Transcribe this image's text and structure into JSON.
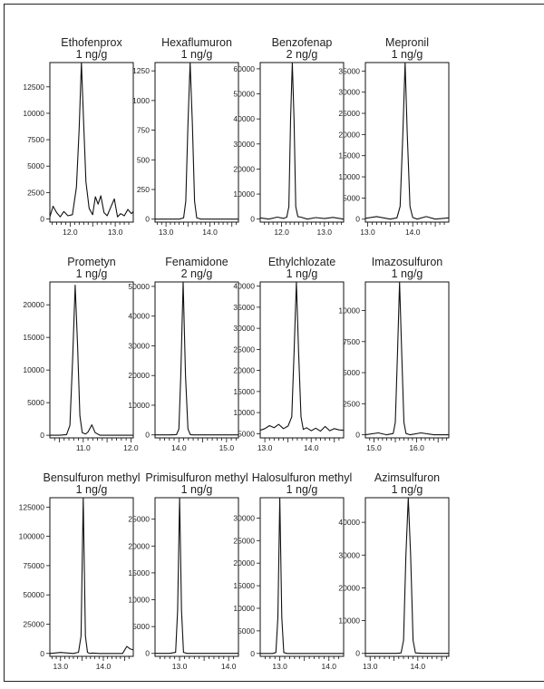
{
  "chart_data": [
    {
      "type": "line",
      "title": "Ethofenprox",
      "subtitle": "1 ng/g",
      "xlim": [
        11.55,
        13.4
      ],
      "ylim": [
        -300,
        14800
      ],
      "xticks": [
        12.0,
        12.5,
        13.0
      ],
      "xtick_labels": [
        "12.0",
        "",
        "13.0"
      ],
      "xminor": [
        11.6,
        11.7,
        11.8,
        11.9,
        12.1,
        12.2,
        12.3,
        12.4,
        12.6,
        12.7,
        12.8,
        12.9,
        13.1,
        13.2,
        13.3
      ],
      "yticks": [
        0,
        2500,
        5000,
        7500,
        10000,
        12500
      ],
      "ytick_labels": [
        "0",
        "2500",
        "5000",
        "7500",
        "10000",
        "12500"
      ],
      "series": [
        {
          "x": [
            11.55,
            11.62,
            11.7,
            11.78,
            11.86,
            11.95,
            12.05,
            12.14,
            12.2,
            12.25,
            12.3,
            12.35,
            12.42,
            12.5,
            12.56,
            12.62,
            12.68,
            12.75,
            12.82,
            12.9,
            12.98,
            13.05,
            13.12,
            13.2,
            13.28,
            13.36,
            13.4
          ],
          "y": [
            200,
            1200,
            600,
            200,
            700,
            300,
            400,
            3000,
            8500,
            14800,
            9000,
            3500,
            1000,
            400,
            2100,
            1400,
            2200,
            600,
            300,
            1100,
            1900,
            200,
            500,
            300,
            900,
            500,
            700
          ]
        }
      ]
    },
    {
      "type": "line",
      "title": "Hexaflumuron",
      "subtitle": "1 ng/g",
      "xlim": [
        12.75,
        14.65
      ],
      "ylim": [
        -25,
        1320
      ],
      "xticks": [
        13.0,
        13.5,
        14.0,
        14.5
      ],
      "xtick_labels": [
        "13.0",
        "",
        "14.0",
        ""
      ],
      "xminor": [
        12.8,
        12.9,
        13.1,
        13.2,
        13.3,
        13.4,
        13.6,
        13.7,
        13.8,
        13.9,
        14.1,
        14.2,
        14.3,
        14.4,
        14.6
      ],
      "yticks": [
        0,
        250,
        500,
        750,
        1000,
        1250
      ],
      "ytick_labels": [
        "0",
        "250",
        "500",
        "750",
        "1000",
        "1250"
      ],
      "series": [
        {
          "x": [
            12.75,
            13.0,
            13.3,
            13.4,
            13.45,
            13.5,
            13.55,
            13.6,
            13.65,
            13.7,
            13.8,
            14.0,
            14.3,
            14.65
          ],
          "y": [
            0,
            0,
            0,
            10,
            150,
            800,
            1320,
            800,
            150,
            10,
            0,
            0,
            0,
            0
          ]
        }
      ]
    },
    {
      "type": "line",
      "title": "Benzofenap",
      "subtitle": "2 ng/g",
      "xlim": [
        11.5,
        13.45
      ],
      "ylim": [
        -1200,
        62500
      ],
      "xticks": [
        12.0,
        12.5,
        13.0
      ],
      "xtick_labels": [
        "12.0",
        "",
        "13.0"
      ],
      "xminor": [
        11.6,
        11.7,
        11.8,
        11.9,
        12.1,
        12.2,
        12.3,
        12.4,
        12.6,
        12.7,
        12.8,
        12.9,
        13.1,
        13.2,
        13.3,
        13.4
      ],
      "yticks": [
        0,
        10000,
        20000,
        30000,
        40000,
        50000,
        60000
      ],
      "ytick_labels": [
        "0",
        "10000",
        "20000",
        "30000",
        "40000",
        "50000",
        "60000"
      ],
      "series": [
        {
          "x": [
            11.5,
            11.7,
            11.9,
            12.05,
            12.12,
            12.17,
            12.21,
            12.25,
            12.29,
            12.33,
            12.38,
            12.45,
            12.6,
            12.8,
            13.0,
            13.2,
            13.45
          ],
          "y": [
            500,
            0,
            800,
            300,
            800,
            5000,
            40000,
            62500,
            40000,
            5000,
            1000,
            800,
            0,
            600,
            200,
            700,
            0
          ]
        }
      ]
    },
    {
      "type": "line",
      "title": "Mepronil",
      "subtitle": "1 ng/g",
      "xlim": [
        12.95,
        14.8
      ],
      "ylim": [
        -700,
        37000
      ],
      "xticks": [
        13.0,
        13.5,
        14.0,
        14.5
      ],
      "xtick_labels": [
        "13.0",
        "",
        "14.0",
        ""
      ],
      "xminor": [
        13.1,
        13.2,
        13.3,
        13.4,
        13.6,
        13.7,
        13.8,
        13.9,
        14.1,
        14.2,
        14.3,
        14.4,
        14.6,
        14.7
      ],
      "yticks": [
        0,
        5000,
        10000,
        15000,
        20000,
        25000,
        30000,
        35000
      ],
      "ytick_labels": [
        "0",
        "5000",
        "10000",
        "15000",
        "20000",
        "25000",
        "30000",
        "35000"
      ],
      "series": [
        {
          "x": [
            12.95,
            13.2,
            13.5,
            13.65,
            13.72,
            13.78,
            13.83,
            13.88,
            13.94,
            14.0,
            14.1,
            14.3,
            14.5,
            14.8
          ],
          "y": [
            200,
            600,
            0,
            300,
            3000,
            20000,
            37000,
            20000,
            3000,
            400,
            0,
            600,
            0,
            300
          ]
        }
      ]
    },
    {
      "type": "line",
      "title": "Prometyn",
      "subtitle": "1 ng/g",
      "xlim": [
        10.3,
        12.05
      ],
      "ylim": [
        -400,
        23500
      ],
      "xticks": [
        10.5,
        11.0,
        11.5,
        12.0
      ],
      "xtick_labels": [
        "",
        "11.0",
        "",
        "12.0"
      ],
      "xminor": [
        10.4,
        10.6,
        10.7,
        10.8,
        10.9,
        11.1,
        11.2,
        11.3,
        11.4,
        11.6,
        11.7,
        11.8,
        11.9
      ],
      "yticks": [
        0,
        5000,
        10000,
        15000,
        20000
      ],
      "ytick_labels": [
        "0",
        "5000",
        "10000",
        "15000",
        "20000"
      ],
      "series": [
        {
          "x": [
            10.3,
            10.5,
            10.65,
            10.72,
            10.78,
            10.83,
            10.88,
            10.93,
            10.98,
            11.05,
            11.1,
            11.18,
            11.25,
            11.35,
            11.5,
            11.7,
            12.05
          ],
          "y": [
            0,
            0,
            100,
            1500,
            12000,
            23000,
            14000,
            3000,
            400,
            200,
            500,
            1600,
            400,
            0,
            0,
            0,
            0
          ]
        }
      ]
    },
    {
      "type": "line",
      "title": "Fenamidone",
      "subtitle": "2 ng/g",
      "xlim": [
        13.5,
        15.25
      ],
      "ylim": [
        -1000,
        51500
      ],
      "xticks": [
        14.0,
        14.5,
        15.0
      ],
      "xtick_labels": [
        "14.0",
        "",
        "15.0"
      ],
      "xminor": [
        13.6,
        13.7,
        13.8,
        13.9,
        14.1,
        14.2,
        14.3,
        14.4,
        14.6,
        14.7,
        14.8,
        14.9,
        15.1,
        15.2
      ],
      "yticks": [
        0,
        10000,
        20000,
        30000,
        40000,
        50000
      ],
      "ytick_labels": [
        "0",
        "10000",
        "20000",
        "30000",
        "40000",
        "50000"
      ],
      "series": [
        {
          "x": [
            13.5,
            13.8,
            13.95,
            14.0,
            14.04,
            14.09,
            14.14,
            14.19,
            14.24,
            14.3,
            14.5,
            14.8,
            15.25
          ],
          "y": [
            0,
            0,
            100,
            2000,
            20000,
            51500,
            20000,
            2000,
            100,
            0,
            0,
            0,
            0
          ]
        }
      ]
    },
    {
      "type": "line",
      "title": "Ethylchlozate",
      "subtitle": "1 ng/g",
      "xlim": [
        12.9,
        14.7
      ],
      "ylim": [
        4000,
        41000
      ],
      "xticks": [
        13.0,
        13.5,
        14.0,
        14.5
      ],
      "xtick_labels": [
        "13.0",
        "",
        "14.0",
        ""
      ],
      "xminor": [
        13.1,
        13.2,
        13.3,
        13.4,
        13.6,
        13.7,
        13.8,
        13.9,
        14.1,
        14.2,
        14.3,
        14.4,
        14.6
      ],
      "yticks": [
        5000,
        10000,
        15000,
        20000,
        25000,
        30000,
        35000,
        40000
      ],
      "ytick_labels": [
        "5000",
        "10000",
        "15000",
        "20000",
        "25000",
        "30000",
        "35000",
        "40000"
      ],
      "series": [
        {
          "x": [
            12.9,
            13.0,
            13.1,
            13.2,
            13.3,
            13.4,
            13.5,
            13.58,
            13.63,
            13.68,
            13.73,
            13.78,
            13.83,
            13.9,
            14.0,
            14.1,
            14.2,
            14.3,
            14.4,
            14.5,
            14.6,
            14.7
          ],
          "y": [
            5800,
            6200,
            6900,
            6400,
            7200,
            6200,
            6800,
            9000,
            24000,
            41000,
            24000,
            9000,
            6000,
            6400,
            5700,
            6300,
            5600,
            6700,
            5700,
            6200,
            5900,
            5800
          ]
        }
      ]
    },
    {
      "type": "line",
      "title": "Imazosulfuron",
      "subtitle": "1 ng/g",
      "xlim": [
        14.8,
        16.75
      ],
      "ylim": [
        -250,
        12300
      ],
      "xticks": [
        15.0,
        15.5,
        16.0,
        16.5
      ],
      "xtick_labels": [
        "15.0",
        "",
        "16.0",
        ""
      ],
      "xminor": [
        14.9,
        15.1,
        15.2,
        15.3,
        15.4,
        15.6,
        15.7,
        15.8,
        15.9,
        16.1,
        16.2,
        16.3,
        16.4,
        16.6,
        16.7
      ],
      "yticks": [
        0,
        2500,
        5000,
        7500,
        10000
      ],
      "ytick_labels": [
        "0",
        "2500",
        "5000",
        "7500",
        "10000"
      ],
      "series": [
        {
          "x": [
            14.8,
            15.1,
            15.3,
            15.45,
            15.5,
            15.55,
            15.6,
            15.65,
            15.7,
            15.75,
            15.85,
            16.1,
            16.4,
            16.75
          ],
          "y": [
            0,
            150,
            0,
            100,
            1000,
            6500,
            12300,
            6500,
            1000,
            100,
            0,
            150,
            0,
            0
          ]
        }
      ]
    },
    {
      "type": "line",
      "title": "Bensulfuron methyl",
      "subtitle": "1 ng/g",
      "xlim": [
        12.75,
        14.7
      ],
      "ylim": [
        -2500,
        133000
      ],
      "xticks": [
        13.0,
        13.5,
        14.0,
        14.5
      ],
      "xtick_labels": [
        "13.0",
        "",
        "14.0",
        ""
      ],
      "xminor": [
        12.8,
        12.9,
        13.1,
        13.2,
        13.3,
        13.4,
        13.6,
        13.7,
        13.8,
        13.9,
        14.1,
        14.2,
        14.3,
        14.4,
        14.6
      ],
      "yticks": [
        0,
        25000,
        50000,
        75000,
        100000,
        125000
      ],
      "ytick_labels": [
        "0",
        "25000",
        "50000",
        "75000",
        "100000",
        "125000"
      ],
      "series": [
        {
          "x": [
            12.75,
            13.0,
            13.3,
            13.42,
            13.48,
            13.53,
            13.58,
            13.63,
            13.68,
            13.75,
            13.9,
            14.2,
            14.45,
            14.55,
            14.62,
            14.7
          ],
          "y": [
            0,
            800,
            0,
            1000,
            15000,
            133000,
            15000,
            1000,
            0,
            400,
            0,
            0,
            0,
            6000,
            4000,
            3000
          ]
        }
      ]
    },
    {
      "type": "line",
      "title": "Primisulfuron methyl",
      "subtitle": "1 ng/g",
      "xlim": [
        12.5,
        14.2
      ],
      "ylim": [
        -550,
        29000
      ],
      "xticks": [
        13.0,
        13.5,
        14.0
      ],
      "xtick_labels": [
        "13.0",
        "",
        "14.0"
      ],
      "xminor": [
        12.6,
        12.7,
        12.8,
        12.9,
        13.1,
        13.2,
        13.3,
        13.4,
        13.6,
        13.7,
        13.8,
        13.9,
        14.1
      ],
      "yticks": [
        0,
        5000,
        10000,
        15000,
        20000,
        25000
      ],
      "ytick_labels": [
        "0",
        "5000",
        "10000",
        "15000",
        "20000",
        "25000"
      ],
      "series": [
        {
          "x": [
            12.5,
            12.8,
            12.92,
            12.96,
            13.0,
            13.04,
            13.08,
            13.15,
            13.4,
            13.8,
            14.2
          ],
          "y": [
            0,
            0,
            200,
            8000,
            29000,
            8000,
            200,
            0,
            0,
            0,
            0
          ]
        }
      ]
    },
    {
      "type": "line",
      "title": "Halosulfuron methyl",
      "subtitle": "1 ng/g",
      "xlim": [
        12.6,
        14.3
      ],
      "ylim": [
        -650,
        34500
      ],
      "xticks": [
        13.0,
        13.5,
        14.0
      ],
      "xtick_labels": [
        "13.0",
        "",
        "14.0"
      ],
      "xminor": [
        12.7,
        12.8,
        12.9,
        13.1,
        13.2,
        13.3,
        13.4,
        13.6,
        13.7,
        13.8,
        13.9,
        14.1,
        14.2
      ],
      "yticks": [
        0,
        5000,
        10000,
        15000,
        20000,
        25000,
        30000
      ],
      "ytick_labels": [
        "0",
        "5000",
        "10000",
        "15000",
        "20000",
        "25000",
        "30000"
      ],
      "series": [
        {
          "x": [
            12.6,
            12.85,
            12.92,
            12.96,
            13.0,
            13.04,
            13.08,
            13.15,
            13.4,
            13.8,
            14.3
          ],
          "y": [
            0,
            0,
            200,
            8000,
            34500,
            8000,
            200,
            0,
            0,
            0,
            0
          ]
        }
      ]
    },
    {
      "type": "line",
      "title": "Azimsulfuron",
      "subtitle": "1 ng/g",
      "xlim": [
        12.9,
        14.65
      ],
      "ylim": [
        -900,
        47500
      ],
      "xticks": [
        13.0,
        13.5,
        14.0,
        14.5
      ],
      "xtick_labels": [
        "13.0",
        "",
        "14.0",
        ""
      ],
      "xminor": [
        13.1,
        13.2,
        13.3,
        13.4,
        13.6,
        13.7,
        13.8,
        13.9,
        14.1,
        14.2,
        14.3,
        14.4,
        14.6
      ],
      "yticks": [
        0,
        10000,
        20000,
        30000,
        40000
      ],
      "ytick_labels": [
        "0",
        "10000",
        "20000",
        "30000",
        "40000"
      ],
      "series": [
        {
          "x": [
            12.9,
            13.3,
            13.55,
            13.65,
            13.7,
            13.75,
            13.8,
            13.85,
            13.9,
            13.95,
            14.1,
            14.4,
            14.65
          ],
          "y": [
            0,
            0,
            0,
            150,
            4000,
            30000,
            47500,
            30000,
            4000,
            150,
            0,
            0,
            0
          ]
        }
      ]
    }
  ]
}
